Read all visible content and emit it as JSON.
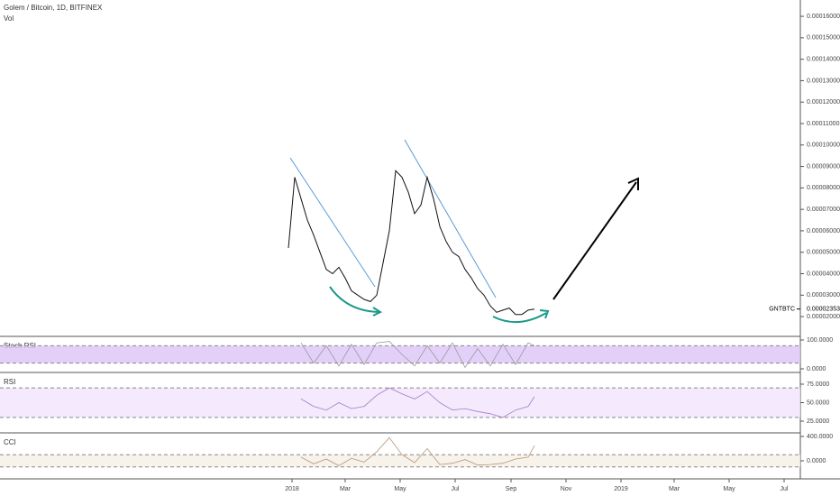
{
  "chart_data": [
    {
      "type": "line",
      "title": "Golem / Bitcoin, 1D, BITFINEX",
      "subtitle": "Vol",
      "color": "#111111",
      "x": [
        "2017-12-28",
        "2018-01-04",
        "2018-01-11",
        "2018-01-18",
        "2018-01-25",
        "2018-02-01",
        "2018-02-08",
        "2018-02-15",
        "2018-02-22",
        "2018-03-01",
        "2018-03-08",
        "2018-03-15",
        "2018-03-22",
        "2018-03-29",
        "2018-04-05",
        "2018-04-12",
        "2018-04-19",
        "2018-04-26",
        "2018-05-03",
        "2018-05-10",
        "2018-05-17",
        "2018-05-24",
        "2018-05-31",
        "2018-06-07",
        "2018-06-14",
        "2018-06-21",
        "2018-06-28",
        "2018-07-05",
        "2018-07-12",
        "2018-07-19",
        "2018-07-26",
        "2018-08-02",
        "2018-08-09",
        "2018-08-16",
        "2018-08-23",
        "2018-08-30",
        "2018-09-06",
        "2018-09-13",
        "2018-09-20",
        "2018-09-27"
      ],
      "values": [
        5.2e-05,
        8.5e-05,
        7.5e-05,
        6.5e-05,
        5.8e-05,
        5e-05,
        4.2e-05,
        4e-05,
        4.3e-05,
        3.8e-05,
        3.2e-05,
        3e-05,
        2.8e-05,
        2.7e-05,
        3e-05,
        4.5e-05,
        6e-05,
        8.8e-05,
        8.5e-05,
        7.8e-05,
        6.8e-05,
        7.2e-05,
        8.5e-05,
        7.5e-05,
        6.2e-05,
        5.5e-05,
        5e-05,
        4.8e-05,
        4.2e-05,
        3.8e-05,
        3.3e-05,
        3e-05,
        2.5e-05,
        2.2e-05,
        2.3e-05,
        2.4e-05,
        2.1e-05,
        2.1e-05,
        2.3e-05,
        2.35e-05
      ],
      "xlim": [
        "2017-02-11",
        "2019-07-19"
      ],
      "xticks": [
        {
          "value": "2018-01-01",
          "label": "2018"
        },
        {
          "value": "2018-03-01",
          "label": "Mar"
        },
        {
          "value": "2018-05-01",
          "label": "May"
        },
        {
          "value": "2018-07-01",
          "label": "Jul"
        },
        {
          "value": "2018-09-01",
          "label": "Sep"
        },
        {
          "value": "2018-11-01",
          "label": "Nov"
        },
        {
          "value": "2019-01-01",
          "label": "2019"
        },
        {
          "value": "2019-03-01",
          "label": "Mar"
        },
        {
          "value": "2019-05-01",
          "label": "May"
        },
        {
          "value": "2019-07-01",
          "label": "Jul"
        }
      ],
      "ylim": [
        1.12e-05,
        0.0001676
      ],
      "yticks": [
        {
          "value": 2e-05,
          "label": "0.00002000"
        },
        {
          "value": 3e-05,
          "label": "0.00003000"
        },
        {
          "value": 4e-05,
          "label": "0.00004000"
        },
        {
          "value": 5e-05,
          "label": "0.00005000"
        },
        {
          "value": 6e-05,
          "label": "0.00006000"
        },
        {
          "value": 7e-05,
          "label": "0.00007000"
        },
        {
          "value": 8e-05,
          "label": "0.00008000"
        },
        {
          "value": 9e-05,
          "label": "0.00009000"
        },
        {
          "value": 0.0001,
          "label": "0.00010000"
        },
        {
          "value": 0.00011,
          "label": "0.00011000"
        },
        {
          "value": 0.00012,
          "label": "0.00012000"
        },
        {
          "value": 0.00013,
          "label": "0.00013000"
        },
        {
          "value": 0.00014,
          "label": "0.00014000"
        },
        {
          "value": 0.00015,
          "label": "0.00015000"
        },
        {
          "value": 0.00016,
          "label": "0.00016000"
        }
      ],
      "last_price": {
        "value": 2.353e-05,
        "label": "0.00002353",
        "symbol": "GNTBTC"
      }
    },
    {
      "type": "line",
      "title": "Stoch RSI",
      "color": "#9a9a9a",
      "x": [
        "2018-01-11",
        "2018-01-25",
        "2018-02-08",
        "2018-02-22",
        "2018-03-08",
        "2018-03-22",
        "2018-04-05",
        "2018-04-19",
        "2018-05-03",
        "2018-05-17",
        "2018-05-31",
        "2018-06-14",
        "2018-06-28",
        "2018-07-12",
        "2018-07-26",
        "2018-08-09",
        "2018-08-23",
        "2018-09-06",
        "2018-09-20",
        "2018-09-27"
      ],
      "values": [
        90,
        20,
        80,
        10,
        85,
        15,
        90,
        95,
        50,
        10,
        80,
        20,
        90,
        5,
        70,
        10,
        85,
        15,
        90,
        80
      ],
      "ylim": [
        -9.4,
        109.4
      ],
      "yticks": [
        {
          "value": 0,
          "label": "0.0000"
        },
        {
          "value": 100,
          "label": "100.0000"
        }
      ],
      "bands": [
        20,
        80
      ],
      "band_color": "#dcc4f7"
    },
    {
      "type": "line",
      "title": "RSI",
      "color": "#a57cc8",
      "x": [
        "2018-01-11",
        "2018-01-25",
        "2018-02-08",
        "2018-02-22",
        "2018-03-08",
        "2018-03-22",
        "2018-04-05",
        "2018-04-19",
        "2018-05-03",
        "2018-05-17",
        "2018-05-31",
        "2018-06-14",
        "2018-06-28",
        "2018-07-12",
        "2018-07-26",
        "2018-08-09",
        "2018-08-23",
        "2018-09-06",
        "2018-09-20",
        "2018-09-27"
      ],
      "values": [
        55,
        45,
        40,
        50,
        42,
        45,
        60,
        70,
        62,
        55,
        65,
        50,
        40,
        42,
        38,
        35,
        30,
        40,
        45,
        58
      ],
      "ylim": [
        10.4,
        89.6
      ],
      "yticks": [
        {
          "value": 25,
          "label": "25.0000"
        },
        {
          "value": 50,
          "label": "50.0000"
        },
        {
          "value": 75,
          "label": "75.0000"
        }
      ],
      "bands": [
        30,
        70
      ],
      "band_color": "#f1e3fc"
    },
    {
      "type": "line",
      "title": "CCI",
      "color": "#b8977a",
      "x": [
        "2018-01-11",
        "2018-01-25",
        "2018-02-08",
        "2018-02-22",
        "2018-03-08",
        "2018-03-22",
        "2018-04-05",
        "2018-04-19",
        "2018-05-03",
        "2018-05-17",
        "2018-05-31",
        "2018-06-14",
        "2018-06-28",
        "2018-07-12",
        "2018-07-26",
        "2018-08-09",
        "2018-08-23",
        "2018-09-06",
        "2018-09-20",
        "2018-09-27"
      ],
      "values": [
        60,
        -50,
        30,
        -80,
        40,
        -20,
        150,
        380,
        100,
        -30,
        200,
        -60,
        -40,
        20,
        -70,
        -60,
        -40,
        30,
        60,
        250
      ],
      "ylim": [
        -296,
        444
      ],
      "yticks": [
        {
          "value": 0,
          "label": "0.0000"
        },
        {
          "value": 400,
          "label": "400.0000"
        }
      ],
      "bands": [
        -100,
        100
      ],
      "band_color": "#f5efe5"
    }
  ]
}
